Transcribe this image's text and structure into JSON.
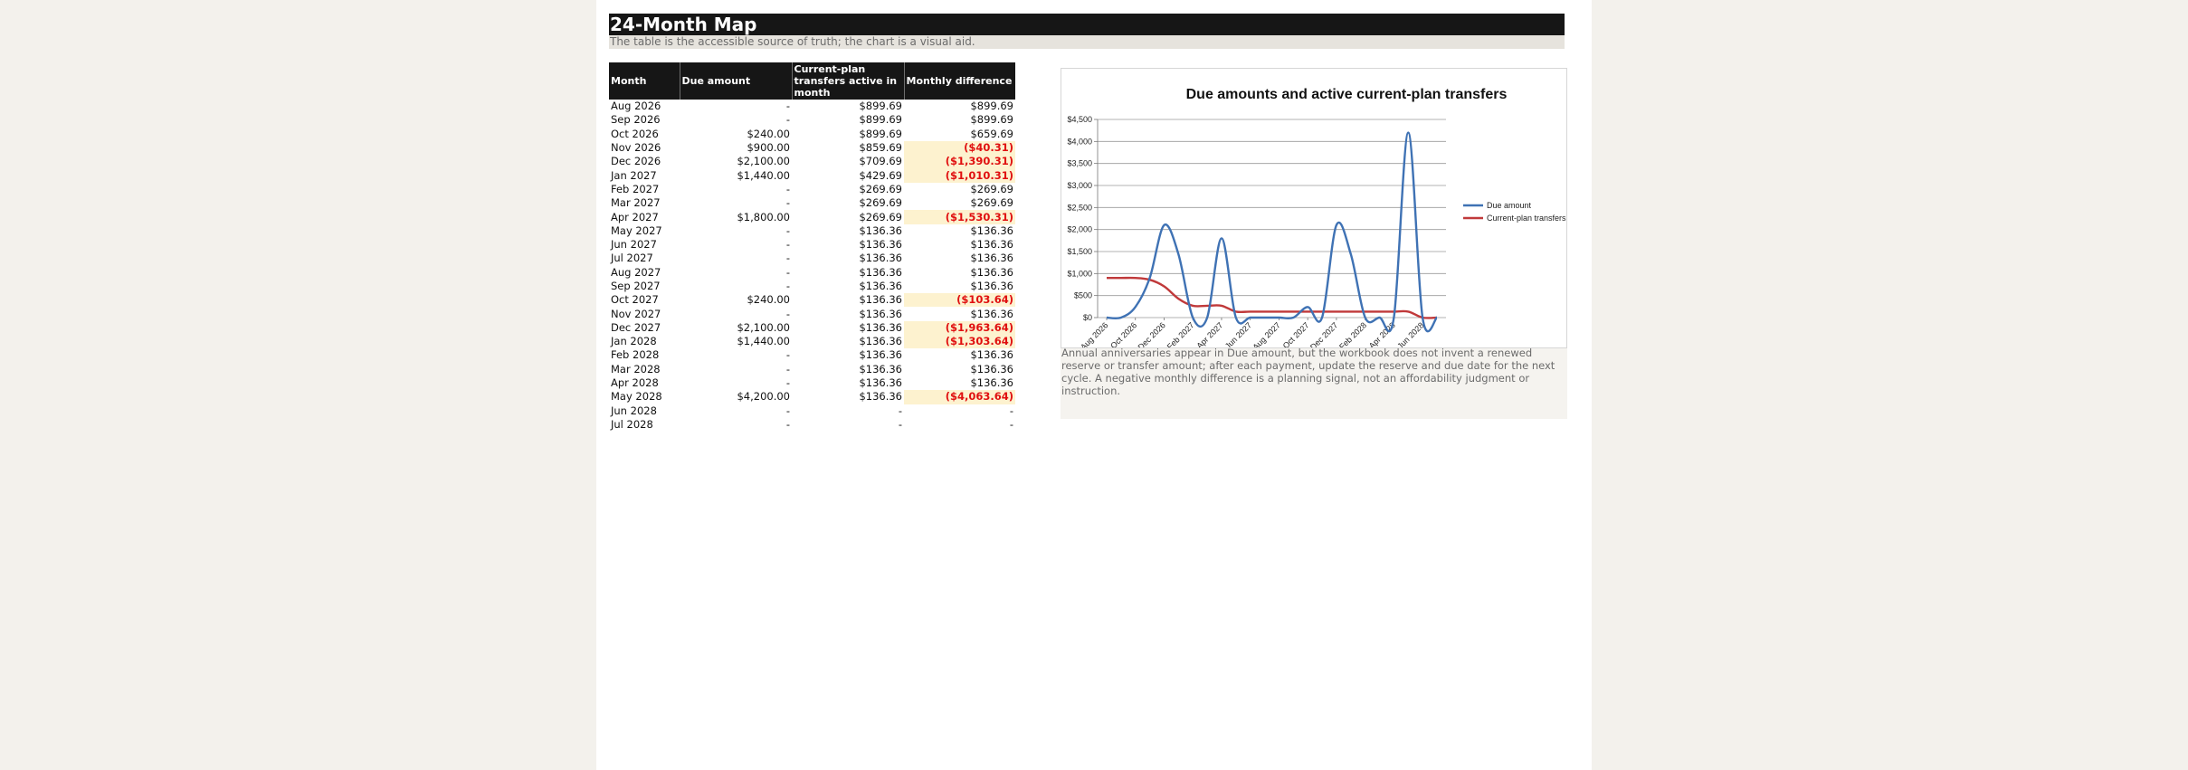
{
  "sheet": {
    "title": "24-Month Map",
    "subtitle": "The table is the accessible source of truth; the chart is a visual aid."
  },
  "table": {
    "headers": [
      "Month",
      "Due amount",
      "Current-plan transfers active in month",
      "Monthly difference"
    ],
    "rows": [
      {
        "month": "Aug 2026",
        "due": "-",
        "transfers": "$899.69",
        "diff": "$899.69",
        "negative": false
      },
      {
        "month": "Sep 2026",
        "due": "-",
        "transfers": "$899.69",
        "diff": "$899.69",
        "negative": false
      },
      {
        "month": "Oct 2026",
        "due": "$240.00",
        "transfers": "$899.69",
        "diff": "$659.69",
        "negative": false
      },
      {
        "month": "Nov 2026",
        "due": "$900.00",
        "transfers": "$859.69",
        "diff": "($40.31)",
        "negative": true
      },
      {
        "month": "Dec 2026",
        "due": "$2,100.00",
        "transfers": "$709.69",
        "diff": "($1,390.31)",
        "negative": true
      },
      {
        "month": "Jan 2027",
        "due": "$1,440.00",
        "transfers": "$429.69",
        "diff": "($1,010.31)",
        "negative": true
      },
      {
        "month": "Feb 2027",
        "due": "-",
        "transfers": "$269.69",
        "diff": "$269.69",
        "negative": false
      },
      {
        "month": "Mar 2027",
        "due": "-",
        "transfers": "$269.69",
        "diff": "$269.69",
        "negative": false
      },
      {
        "month": "Apr 2027",
        "due": "$1,800.00",
        "transfers": "$269.69",
        "diff": "($1,530.31)",
        "negative": true
      },
      {
        "month": "May 2027",
        "due": "-",
        "transfers": "$136.36",
        "diff": "$136.36",
        "negative": false
      },
      {
        "month": "Jun 2027",
        "due": "-",
        "transfers": "$136.36",
        "diff": "$136.36",
        "negative": false
      },
      {
        "month": "Jul 2027",
        "due": "-",
        "transfers": "$136.36",
        "diff": "$136.36",
        "negative": false
      },
      {
        "month": "Aug 2027",
        "due": "-",
        "transfers": "$136.36",
        "diff": "$136.36",
        "negative": false
      },
      {
        "month": "Sep 2027",
        "due": "-",
        "transfers": "$136.36",
        "diff": "$136.36",
        "negative": false
      },
      {
        "month": "Oct 2027",
        "due": "$240.00",
        "transfers": "$136.36",
        "diff": "($103.64)",
        "negative": true
      },
      {
        "month": "Nov 2027",
        "due": "-",
        "transfers": "$136.36",
        "diff": "$136.36",
        "negative": false
      },
      {
        "month": "Dec 2027",
        "due": "$2,100.00",
        "transfers": "$136.36",
        "diff": "($1,963.64)",
        "negative": true
      },
      {
        "month": "Jan 2028",
        "due": "$1,440.00",
        "transfers": "$136.36",
        "diff": "($1,303.64)",
        "negative": true
      },
      {
        "month": "Feb 2028",
        "due": "-",
        "transfers": "$136.36",
        "diff": "$136.36",
        "negative": false
      },
      {
        "month": "Mar 2028",
        "due": "-",
        "transfers": "$136.36",
        "diff": "$136.36",
        "negative": false
      },
      {
        "month": "Apr 2028",
        "due": "-",
        "transfers": "$136.36",
        "diff": "$136.36",
        "negative": false
      },
      {
        "month": "May 2028",
        "due": "$4,200.00",
        "transfers": "$136.36",
        "diff": "($4,063.64)",
        "negative": true
      },
      {
        "month": "Jun 2028",
        "due": "-",
        "transfers": "-",
        "diff": "-",
        "negative": false
      },
      {
        "month": "Jul 2028",
        "due": "-",
        "transfers": "-",
        "diff": "-",
        "negative": false
      }
    ]
  },
  "note": "Annual anniversaries appear in Due amount, but the workbook does not invent a renewed reserve or transfer amount; after each payment, update the reserve and due date for the next cycle. A negative monthly difference is a planning signal, not an affordability judgment or instruction.",
  "chart_data": {
    "type": "line",
    "title": "Due amounts and active current-plan transfers",
    "categories": [
      "Aug 2026",
      "Sep 2026",
      "Oct 2026",
      "Nov 2026",
      "Dec 2026",
      "Jan 2027",
      "Feb 2027",
      "Mar 2027",
      "Apr 2027",
      "May 2027",
      "Jun 2027",
      "Jul 2027",
      "Aug 2027",
      "Sep 2027",
      "Oct 2027",
      "Nov 2027",
      "Dec 2027",
      "Jan 2028",
      "Feb 2028",
      "Mar 2028",
      "Apr 2028",
      "May 2028",
      "Jun 2028",
      "Jul 2028"
    ],
    "tick_labels": [
      "Aug 2026",
      "Oct 2026",
      "Dec 2026",
      "Feb 2027",
      "Apr 2027",
      "Jun 2027",
      "Aug 2027",
      "Oct 2027",
      "Dec 2027",
      "Feb 2028",
      "Apr 2028",
      "Jun 2028"
    ],
    "yticks": [
      "$0",
      "$500",
      "$1,000",
      "$1,500",
      "$2,000",
      "$2,500",
      "$3,000",
      "$3,500",
      "$4,000",
      "$4,500"
    ],
    "ylim": [
      0,
      4500
    ],
    "smooth": true,
    "grid": true,
    "legend": "right",
    "series": [
      {
        "name": "Due amount",
        "color": "#3f72b4",
        "values": [
          0,
          0,
          240,
          900,
          2100,
          1440,
          0,
          0,
          1800,
          0,
          0,
          0,
          0,
          0,
          240,
          0,
          2100,
          1440,
          0,
          0,
          0,
          4200,
          0,
          0
        ]
      },
      {
        "name": "Current-plan transfers",
        "color": "#c0393a",
        "values": [
          899.69,
          899.69,
          899.69,
          859.69,
          709.69,
          429.69,
          269.69,
          269.69,
          269.69,
          136.36,
          136.36,
          136.36,
          136.36,
          136.36,
          136.36,
          136.36,
          136.36,
          136.36,
          136.36,
          136.36,
          136.36,
          136.36,
          0,
          0
        ]
      }
    ]
  }
}
